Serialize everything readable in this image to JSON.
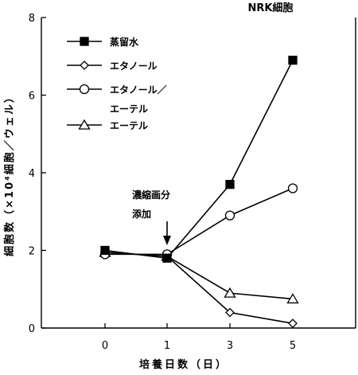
{
  "chart_data": {
    "type": "line",
    "title": "NRK細胞",
    "xlabel": "培養日数（日）",
    "ylabel": "細胞数（×10⁴細胞／ウェル）",
    "x": [
      0,
      1,
      3,
      5
    ],
    "x_tick_labels": [
      "0",
      "1",
      "3",
      "5"
    ],
    "ylim": [
      0,
      8
    ],
    "y_ticks": [
      0,
      2,
      4,
      6,
      8
    ],
    "y_tick_labels": [
      "0",
      "2",
      "4",
      "6",
      "8"
    ],
    "legend_position": "top-left",
    "series": [
      {
        "name": "蒸留水",
        "marker": "filled-square",
        "values": [
          2.0,
          1.8,
          3.7,
          6.9
        ]
      },
      {
        "name": "エタノール",
        "marker": "open-diamond",
        "values": [
          1.95,
          1.85,
          0.4,
          0.12
        ]
      },
      {
        "name": "エタノール／\nエーテル",
        "marker": "open-circle",
        "values": [
          1.9,
          1.9,
          2.9,
          3.6
        ]
      },
      {
        "name": "エーテル",
        "marker": "open-triangle",
        "values": [
          1.95,
          1.85,
          0.9,
          0.75
        ]
      }
    ],
    "annotation": {
      "text_lines": [
        "濃縮画分",
        "添加"
      ],
      "x": 1
    }
  }
}
